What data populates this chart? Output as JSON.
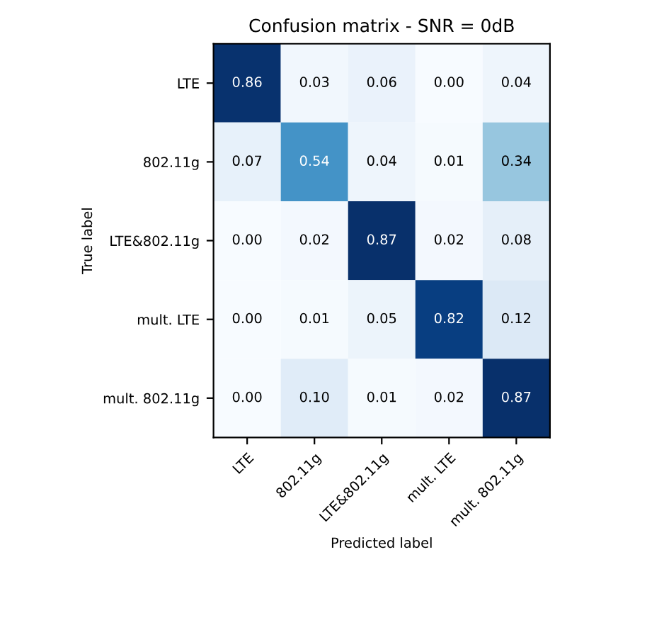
{
  "chart_data": {
    "type": "heatmap",
    "title": "Confusion matrix - SNR = 0dB",
    "xlabel": "Predicted label",
    "ylabel": "True label",
    "categories": [
      "LTE",
      "802.11g",
      "LTE&802.11g",
      "mult. LTE",
      "mult. 802.11g"
    ],
    "y_categories": [
      "LTE",
      "802.11g",
      "LTE&802.11g",
      "mult. LTE",
      "mult. 802.11g"
    ],
    "cells": [
      [
        0.86,
        0.03,
        0.06,
        0.0,
        0.04
      ],
      [
        0.07,
        0.54,
        0.04,
        0.01,
        0.34
      ],
      [
        0.0,
        0.02,
        0.87,
        0.02,
        0.08
      ],
      [
        0.0,
        0.01,
        0.05,
        0.82,
        0.12
      ],
      [
        0.0,
        0.1,
        0.01,
        0.02,
        0.87
      ]
    ],
    "cell_labels": [
      [
        "0.86",
        "0.03",
        "0.06",
        "0.00",
        "0.04"
      ],
      [
        "0.07",
        "0.54",
        "0.04",
        "0.01",
        "0.34"
      ],
      [
        "0.00",
        "0.02",
        "0.87",
        "0.02",
        "0.08"
      ],
      [
        "0.00",
        "0.01",
        "0.05",
        "0.82",
        "0.12"
      ],
      [
        "0.00",
        "0.10",
        "0.01",
        "0.02",
        "0.87"
      ]
    ]
  }
}
